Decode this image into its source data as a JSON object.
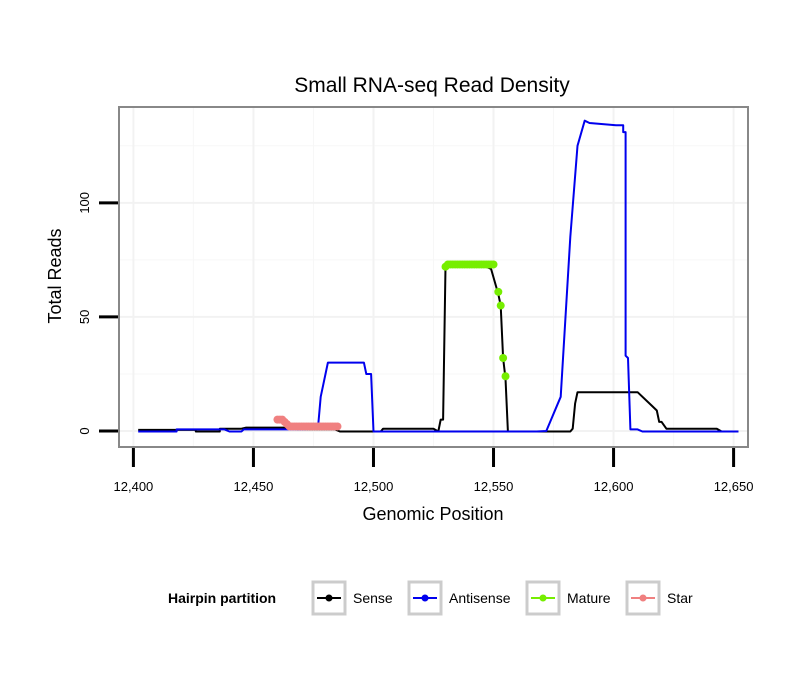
{
  "chart_data": {
    "type": "line",
    "title": "Small RNA-seq Read Density",
    "xlabel": "Genomic Position",
    "ylabel": "Total Reads",
    "xlim": [
      12394,
      12656
    ],
    "ylim": [
      -7,
      142
    ],
    "x_ticks": [
      12400,
      12450,
      12500,
      12550,
      12600,
      12650
    ],
    "x_tick_labels": [
      "12,400",
      "12,450",
      "12,500",
      "12,550",
      "12,600",
      "12,650"
    ],
    "y_ticks": [
      0,
      50,
      100
    ],
    "y_tick_labels": [
      "0",
      "50",
      "100"
    ],
    "legend": {
      "title": "Hairpin partition",
      "position": "bottom",
      "entries": [
        "Sense",
        "Antisense",
        "Mature",
        "Star"
      ]
    },
    "grid": true,
    "series": [
      {
        "name": "Sense",
        "color": "#000000",
        "style": "line",
        "points": [
          [
            12402,
            0.5
          ],
          [
            12426,
            0.5
          ],
          [
            12426,
            -0.2
          ],
          [
            12436,
            -0.2
          ],
          [
            12436,
            1
          ],
          [
            12445,
            1
          ],
          [
            12447,
            1.5
          ],
          [
            12466,
            1.5
          ],
          [
            12468,
            0.7
          ],
          [
            12484,
            0.7
          ],
          [
            12486,
            -0.2
          ],
          [
            12503,
            -0.2
          ],
          [
            12504,
            1
          ],
          [
            12525,
            1
          ],
          [
            12527,
            -0.2
          ],
          [
            12528,
            5
          ],
          [
            12529,
            5
          ],
          [
            12530,
            72
          ],
          [
            12547,
            72
          ],
          [
            12549,
            71
          ],
          [
            12552,
            60
          ],
          [
            12553,
            55
          ],
          [
            12554,
            32
          ],
          [
            12555,
            23
          ],
          [
            12556,
            -0.2
          ],
          [
            12582,
            -0.2
          ],
          [
            12583,
            1
          ],
          [
            12584,
            12
          ],
          [
            12585,
            17
          ],
          [
            12601,
            17
          ],
          [
            12603,
            17
          ],
          [
            12605,
            17
          ],
          [
            12610,
            17
          ],
          [
            12616,
            11
          ],
          [
            12618,
            9
          ],
          [
            12619,
            4
          ],
          [
            12620,
            4
          ],
          [
            12622,
            1
          ],
          [
            12643,
            1
          ],
          [
            12645,
            -0.2
          ],
          [
            12652,
            -0.2
          ]
        ]
      },
      {
        "name": "Antisense",
        "color": "#0000ee",
        "style": "line",
        "points": [
          [
            12402,
            -0.2
          ],
          [
            12418,
            -0.2
          ],
          [
            12418,
            0.7
          ],
          [
            12438,
            0.7
          ],
          [
            12440,
            -0.2
          ],
          [
            12445,
            -0.2
          ],
          [
            12446,
            0.7
          ],
          [
            12470,
            0.7
          ],
          [
            12476,
            1
          ],
          [
            12477,
            3
          ],
          [
            12478,
            15
          ],
          [
            12479,
            20
          ],
          [
            12480,
            25
          ],
          [
            12481,
            30
          ],
          [
            12496,
            30
          ],
          [
            12497,
            25
          ],
          [
            12499,
            25
          ],
          [
            12500,
            -0.2
          ],
          [
            12568,
            -0.2
          ],
          [
            12572,
            0
          ],
          [
            12574,
            5
          ],
          [
            12576,
            10
          ],
          [
            12578,
            15
          ],
          [
            12582,
            85
          ],
          [
            12585,
            125
          ],
          [
            12588,
            136
          ],
          [
            12590,
            135
          ],
          [
            12601,
            134
          ],
          [
            12604,
            134
          ],
          [
            12604,
            131
          ],
          [
            12605,
            131
          ],
          [
            12605,
            33
          ],
          [
            12606,
            32
          ],
          [
            12607,
            0.7
          ],
          [
            12610,
            0.7
          ],
          [
            12612,
            -0.2
          ],
          [
            12652,
            -0.2
          ]
        ]
      },
      {
        "name": "Mature",
        "color": "#76ee00",
        "style": "points",
        "points": [
          [
            12530,
            72
          ],
          [
            12531,
            73
          ],
          [
            12532,
            73
          ],
          [
            12533,
            73
          ],
          [
            12534,
            73
          ],
          [
            12535,
            73
          ],
          [
            12536,
            73
          ],
          [
            12537,
            73
          ],
          [
            12538,
            73
          ],
          [
            12539,
            73
          ],
          [
            12540,
            73
          ],
          [
            12541,
            73
          ],
          [
            12542,
            73
          ],
          [
            12543,
            73
          ],
          [
            12544,
            73
          ],
          [
            12545,
            73
          ],
          [
            12546,
            73
          ],
          [
            12547,
            73
          ],
          [
            12548,
            73
          ],
          [
            12549,
            73
          ],
          [
            12550,
            73
          ],
          [
            12552,
            61
          ],
          [
            12553,
            55
          ],
          [
            12554,
            32
          ],
          [
            12555,
            24
          ]
        ]
      },
      {
        "name": "Star",
        "color": "#f08080",
        "style": "points",
        "points": [
          [
            12460,
            5
          ],
          [
            12461,
            5
          ],
          [
            12462,
            5
          ],
          [
            12463,
            4
          ],
          [
            12464,
            3
          ],
          [
            12465,
            2
          ],
          [
            12466,
            2
          ],
          [
            12467,
            2
          ],
          [
            12468,
            2
          ],
          [
            12469,
            2
          ],
          [
            12470,
            2
          ],
          [
            12471,
            2
          ],
          [
            12472,
            2
          ],
          [
            12473,
            2
          ],
          [
            12474,
            2
          ],
          [
            12475,
            2
          ],
          [
            12476,
            2
          ],
          [
            12477,
            2
          ],
          [
            12478,
            2
          ],
          [
            12479,
            2
          ],
          [
            12480,
            2
          ],
          [
            12481,
            2
          ],
          [
            12482,
            2
          ],
          [
            12483,
            2
          ],
          [
            12484,
            2
          ],
          [
            12485,
            2
          ]
        ]
      }
    ]
  }
}
